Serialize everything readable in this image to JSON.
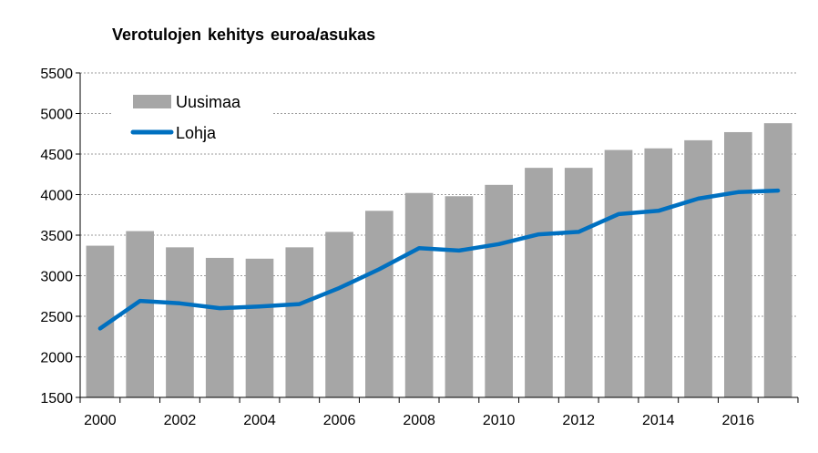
{
  "chart_data": {
    "type": "bar",
    "title": "Verotulojen kehitys euroa/asukas",
    "xlabel": "",
    "ylabel": "",
    "years": [
      2000,
      2001,
      2002,
      2003,
      2004,
      2005,
      2006,
      2007,
      2008,
      2009,
      2010,
      2011,
      2012,
      2013,
      2014,
      2015,
      2016,
      2017
    ],
    "x_tick_labels": [
      "2000",
      "2002",
      "2004",
      "2006",
      "2008",
      "2010",
      "2012",
      "2014",
      "2016"
    ],
    "y_ticks": [
      1500,
      2000,
      2500,
      3000,
      3500,
      4000,
      4500,
      5000,
      5500
    ],
    "ylim": [
      1500,
      5500
    ],
    "grid": "horizontal dashed",
    "legend_position": "top-left",
    "series": [
      {
        "name": "Uusimaa",
        "kind": "bar",
        "color": "#a6a6a6",
        "values": [
          3370,
          3550,
          3350,
          3220,
          3210,
          3350,
          3540,
          3800,
          4020,
          3980,
          4120,
          4330,
          4330,
          4550,
          4570,
          4670,
          4770,
          4880
        ]
      },
      {
        "name": "Lohja",
        "kind": "line",
        "color": "#0070c0",
        "values": [
          2350,
          2690,
          2660,
          2600,
          2620,
          2650,
          2850,
          3080,
          3340,
          3310,
          3390,
          3510,
          3540,
          3760,
          3800,
          3950,
          4030,
          4050
        ]
      }
    ]
  }
}
